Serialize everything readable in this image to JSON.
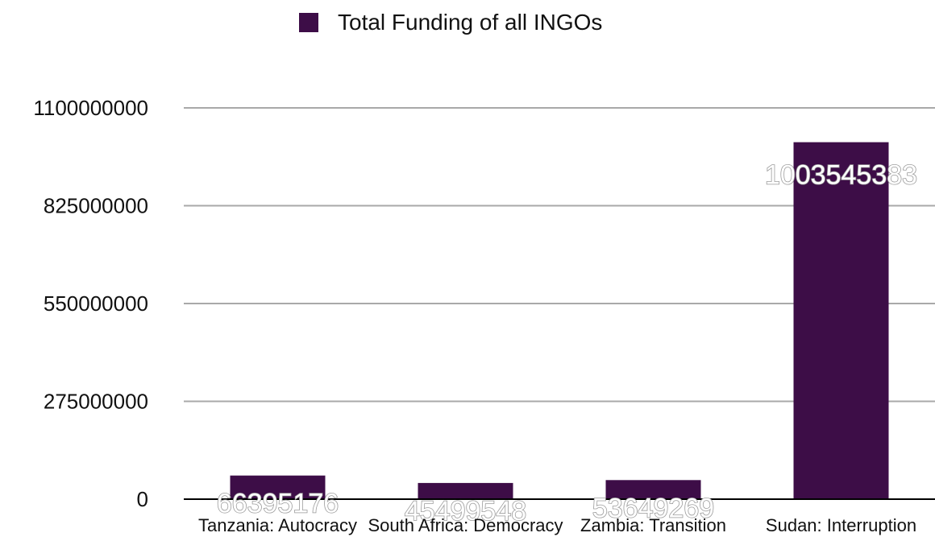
{
  "chart_data": {
    "type": "bar",
    "categories": [
      "Tanzania: Autocracy",
      "South Africa: Democracy",
      "Zambia: Transition",
      "Sudan: Interruption"
    ],
    "series": [
      {
        "name": "Total Funding of all INGOs",
        "values": [
          66395176,
          45499548,
          53649269,
          1003545383
        ]
      }
    ],
    "data_labels": [
      "66395176",
      "45499548",
      "53649269",
      "1003545383"
    ],
    "ylim": [
      0,
      1100000000
    ],
    "yticks": [
      0,
      275000000,
      550000000,
      825000000,
      1100000000
    ],
    "ytick_labels": [
      "0",
      "275000000",
      "550000000",
      "825000000",
      "1100000000"
    ],
    "grid": true,
    "legend": "top-center",
    "colors": {
      "bar": "#3d0d47",
      "grid": "#a9a9a9",
      "axis": "#000000"
    }
  }
}
